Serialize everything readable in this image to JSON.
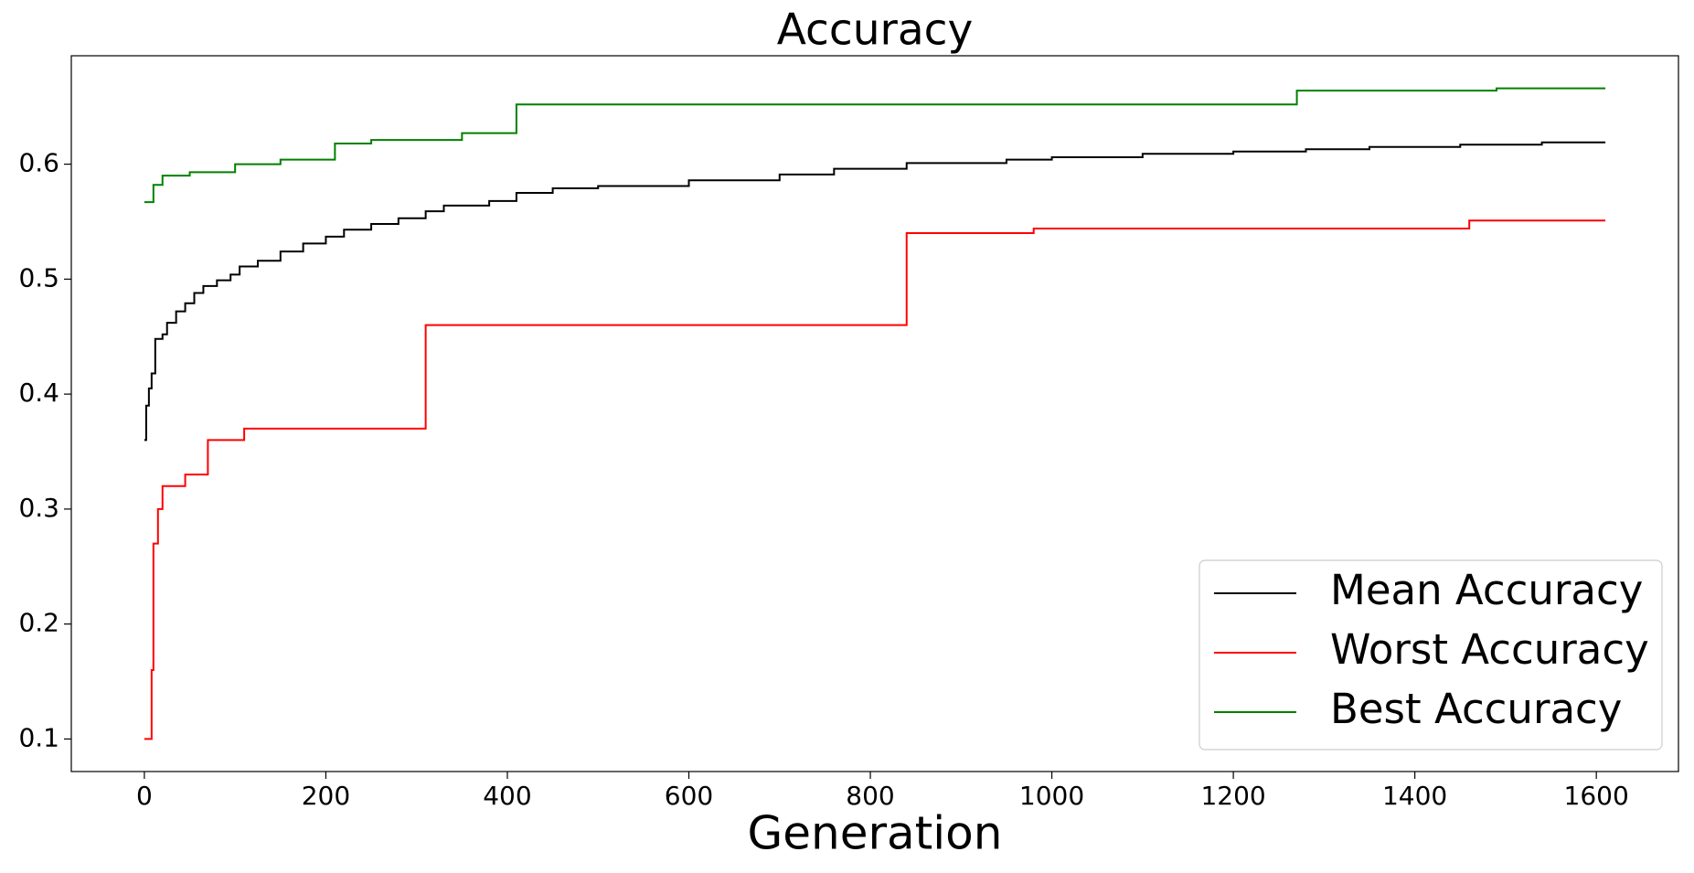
{
  "chart_data": {
    "type": "line",
    "drawstyle": "steps-post",
    "title": "Accuracy",
    "xlabel": "Generation",
    "xlim": [
      -80.5,
      1690.5
    ],
    "xticks": [
      0,
      200,
      400,
      600,
      800,
      1000,
      1200,
      1400,
      1600
    ],
    "ylim": [
      0.0717,
      0.6943
    ],
    "yticks": [
      0.1,
      0.2,
      0.3,
      0.4,
      0.5,
      0.6
    ],
    "grid": false,
    "legend": "lower right",
    "series": [
      {
        "name": "Mean Accuracy",
        "color": "#000000",
        "x": [
          0,
          2,
          5,
          8,
          12,
          20,
          25,
          35,
          45,
          55,
          65,
          80,
          95,
          105,
          125,
          150,
          175,
          200,
          220,
          250,
          280,
          310,
          330,
          380,
          410,
          450,
          500,
          600,
          700,
          760,
          840,
          950,
          1000,
          1100,
          1200,
          1280,
          1350,
          1450,
          1540,
          1610
        ],
        "y": [
          0.36,
          0.39,
          0.405,
          0.418,
          0.448,
          0.452,
          0.462,
          0.472,
          0.479,
          0.488,
          0.494,
          0.499,
          0.504,
          0.511,
          0.516,
          0.524,
          0.531,
          0.537,
          0.543,
          0.548,
          0.553,
          0.559,
          0.564,
          0.568,
          0.575,
          0.579,
          0.581,
          0.586,
          0.591,
          0.596,
          0.601,
          0.604,
          0.606,
          0.609,
          0.611,
          0.613,
          0.615,
          0.617,
          0.619,
          0.619
        ]
      },
      {
        "name": "Worst Accuracy",
        "color": "#ff0000",
        "x": [
          0,
          8,
          10,
          15,
          20,
          45,
          70,
          110,
          310,
          840,
          980,
          1460,
          1610
        ],
        "y": [
          0.1,
          0.16,
          0.27,
          0.3,
          0.32,
          0.33,
          0.36,
          0.37,
          0.46,
          0.54,
          0.544,
          0.551,
          0.551
        ]
      },
      {
        "name": "Best Accuracy",
        "color": "#008000",
        "x": [
          0,
          10,
          20,
          50,
          100,
          150,
          210,
          250,
          350,
          410,
          1270,
          1490,
          1610
        ],
        "y": [
          0.567,
          0.582,
          0.59,
          0.593,
          0.6,
          0.604,
          0.618,
          0.621,
          0.627,
          0.652,
          0.664,
          0.666,
          0.666
        ]
      }
    ]
  }
}
